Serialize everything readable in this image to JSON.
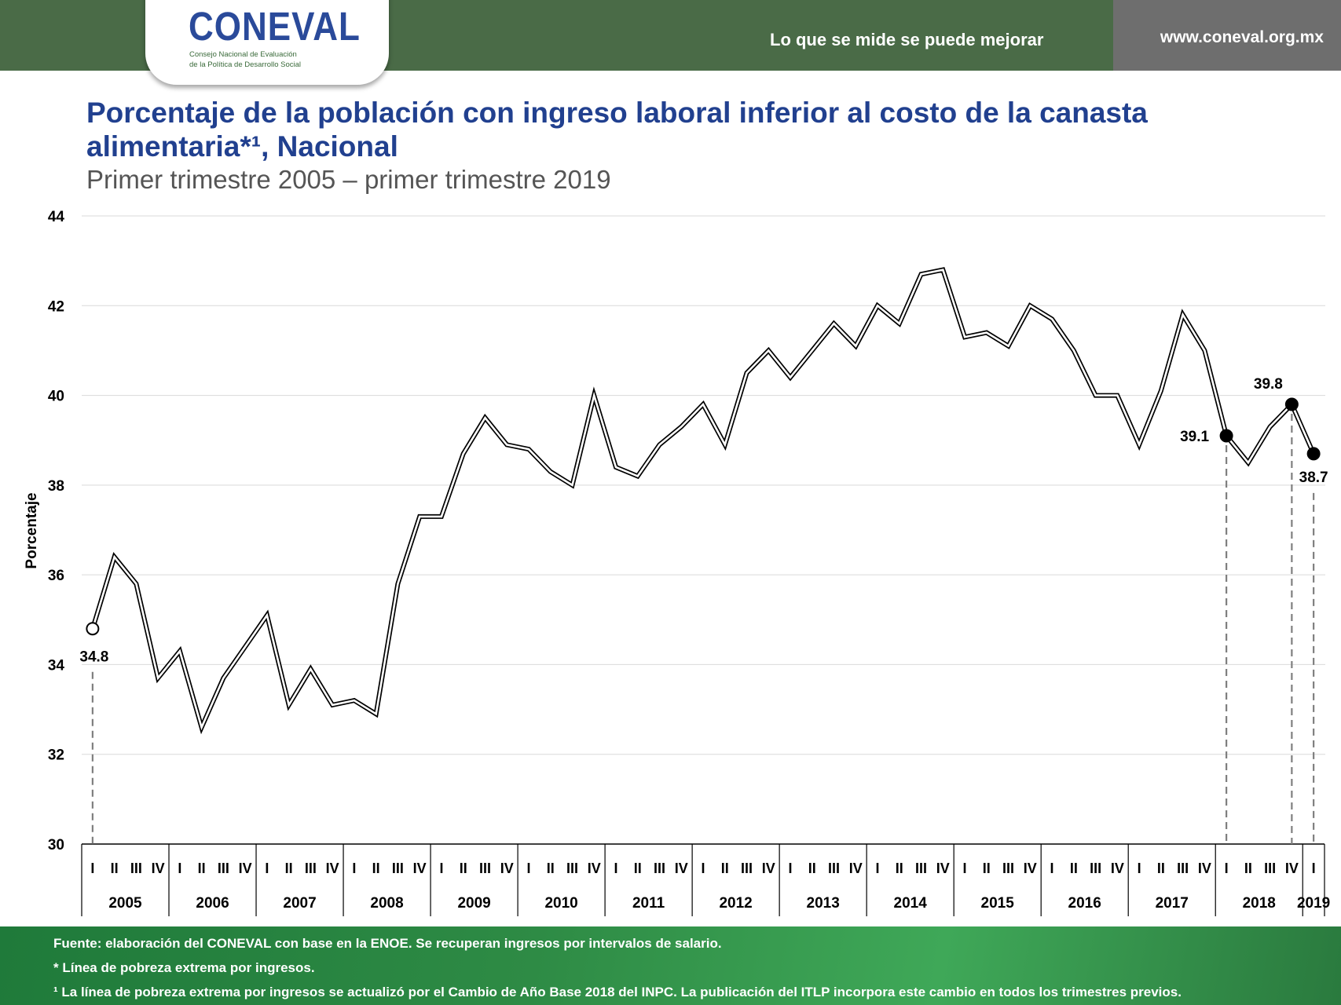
{
  "header": {
    "logo_text": "CONEVAL",
    "logo_sub_line1": "Consejo Nacional de Evaluación",
    "logo_sub_line2": "de la Política de Desarrollo Social",
    "slogan": "Lo que se mide se puede mejorar",
    "url": "www.coneval.org.mx"
  },
  "title": "Porcentaje de la población con ingreso laboral inferior al costo de la canasta alimentaria*¹, Nacional",
  "subtitle": "Primer trimestre 2005 – primer trimestre 2019",
  "footer": {
    "source": "Fuente: elaboración del CONEVAL con base en la ENOE. Se recuperan ingresos por intervalos de salario.",
    "note1": "* Línea de pobreza extrema por ingresos.",
    "note2": "¹ La línea de pobreza extrema por ingresos se actualizó por el Cambio de Año Base 2018 del INPC. La publicación del ITLP incorpora este cambio en todos los trimestres previos."
  },
  "colors": {
    "title": "#21408f",
    "header_green": "#4a6b47",
    "header_gray": "#6e6e6e",
    "line": "#000000"
  },
  "chart_data": {
    "type": "line",
    "ylabel": "Porcentaje",
    "ylim": [
      30,
      44
    ],
    "yticks": [
      30,
      32,
      34,
      36,
      38,
      40,
      42,
      44
    ],
    "grid": true,
    "quarter_labels": [
      "I",
      "II",
      "III",
      "IV"
    ],
    "years": [
      "2005",
      "2006",
      "2007",
      "2008",
      "2009",
      "2010",
      "2011",
      "2012",
      "2013",
      "2014",
      "2015",
      "2016",
      "2017",
      "2018",
      "2019"
    ],
    "series": [
      {
        "values": [
          34.8,
          36.4,
          35.8,
          33.7,
          34.3,
          32.6,
          33.7,
          34.4,
          35.1,
          33.1,
          33.9,
          33.1,
          33.2,
          32.9,
          35.8,
          37.3,
          37.3,
          38.7,
          39.5,
          38.9,
          38.8,
          38.3,
          38.0,
          40.0,
          38.4,
          38.2,
          38.9,
          39.3,
          39.8,
          38.9,
          40.5,
          41.0,
          40.4,
          41.0,
          41.6,
          41.1,
          42.0,
          41.6,
          42.7,
          42.8,
          41.3,
          41.4,
          41.1,
          42.0,
          41.7,
          41.0,
          40.0,
          40.0,
          38.9,
          40.1,
          41.8,
          41.0,
          39.1,
          38.5,
          39.3,
          39.8,
          38.7
        ]
      }
    ],
    "labeled_points": [
      {
        "label": "34.8",
        "year": "2005",
        "quarter": "I"
      },
      {
        "label": "39.1",
        "year": "2018",
        "quarter": "I"
      },
      {
        "label": "39.8",
        "year": "2018",
        "quarter": "IV"
      },
      {
        "label": "38.7",
        "year": "2019",
        "quarter": "I"
      }
    ]
  }
}
